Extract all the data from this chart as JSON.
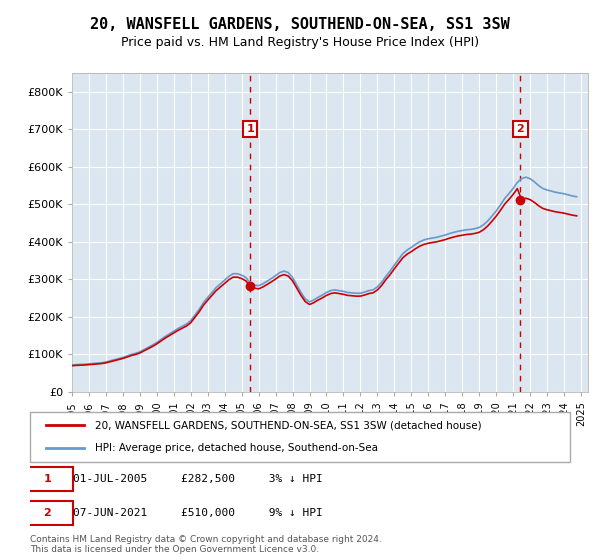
{
  "title": "20, WANSFELL GARDENS, SOUTHEND-ON-SEA, SS1 3SW",
  "subtitle": "Price paid vs. HM Land Registry's House Price Index (HPI)",
  "title_fontsize": 11,
  "subtitle_fontsize": 9,
  "background_color": "#dce6f0",
  "plot_bg_color": "#dce6f0",
  "ylabel_ticks": [
    "£0",
    "£100K",
    "£200K",
    "£300K",
    "£400K",
    "£500K",
    "£600K",
    "£700K",
    "£800K"
  ],
  "ytick_values": [
    0,
    100000,
    200000,
    300000,
    400000,
    500000,
    600000,
    700000,
    800000
  ],
  "ylim": [
    0,
    850000
  ],
  "xlim_start": "1995-01-01",
  "xlim_end": "2025-06-01",
  "legend_line1": "20, WANSFELL GARDENS, SOUTHEND-ON-SEA, SS1 3SW (detached house)",
  "legend_line2": "HPI: Average price, detached house, Southend-on-Sea",
  "annotation1_label": "1",
  "annotation1_date": "2005-07-01",
  "annotation1_price": 282500,
  "annotation1_text": "01-JUL-2005     £282,500     3% ↓ HPI",
  "annotation2_label": "2",
  "annotation2_date": "2021-06-07",
  "annotation2_price": 510000,
  "annotation2_text": "07-JUN-2021     £510,000     9% ↓ HPI",
  "footer": "Contains HM Land Registry data © Crown copyright and database right 2024.\nThis data is licensed under the Open Government Licence v3.0.",
  "line_color_red": "#cc0000",
  "line_color_blue": "#6699cc",
  "annotation_color": "#cc0000",
  "hpi_dates": [
    "1995-01-01",
    "1995-04-01",
    "1995-07-01",
    "1995-10-01",
    "1996-01-01",
    "1996-04-01",
    "1996-07-01",
    "1996-10-01",
    "1997-01-01",
    "1997-04-01",
    "1997-07-01",
    "1997-10-01",
    "1998-01-01",
    "1998-04-01",
    "1998-07-01",
    "1998-10-01",
    "1999-01-01",
    "1999-04-01",
    "1999-07-01",
    "1999-10-01",
    "2000-01-01",
    "2000-04-01",
    "2000-07-01",
    "2000-10-01",
    "2001-01-01",
    "2001-04-01",
    "2001-07-01",
    "2001-10-01",
    "2002-01-01",
    "2002-04-01",
    "2002-07-01",
    "2002-10-01",
    "2003-01-01",
    "2003-04-01",
    "2003-07-01",
    "2003-10-01",
    "2004-01-01",
    "2004-04-01",
    "2004-07-01",
    "2004-10-01",
    "2005-01-01",
    "2005-04-01",
    "2005-07-01",
    "2005-10-01",
    "2006-01-01",
    "2006-04-01",
    "2006-07-01",
    "2006-10-01",
    "2007-01-01",
    "2007-04-01",
    "2007-07-01",
    "2007-10-01",
    "2008-01-01",
    "2008-04-01",
    "2008-07-01",
    "2008-10-01",
    "2009-01-01",
    "2009-04-01",
    "2009-07-01",
    "2009-10-01",
    "2010-01-01",
    "2010-04-01",
    "2010-07-01",
    "2010-10-01",
    "2011-01-01",
    "2011-04-01",
    "2011-07-01",
    "2011-10-01",
    "2012-01-01",
    "2012-04-01",
    "2012-07-01",
    "2012-10-01",
    "2013-01-01",
    "2013-04-01",
    "2013-07-01",
    "2013-10-01",
    "2014-01-01",
    "2014-04-01",
    "2014-07-01",
    "2014-10-01",
    "2015-01-01",
    "2015-04-01",
    "2015-07-01",
    "2015-10-01",
    "2016-01-01",
    "2016-04-01",
    "2016-07-01",
    "2016-10-01",
    "2017-01-01",
    "2017-04-01",
    "2017-07-01",
    "2017-10-01",
    "2018-01-01",
    "2018-04-01",
    "2018-07-01",
    "2018-10-01",
    "2019-01-01",
    "2019-04-01",
    "2019-07-01",
    "2019-10-01",
    "2020-01-01",
    "2020-04-01",
    "2020-07-01",
    "2020-10-01",
    "2021-01-01",
    "2021-04-01",
    "2021-07-01",
    "2021-10-01",
    "2022-01-01",
    "2022-04-01",
    "2022-07-01",
    "2022-10-01",
    "2023-01-01",
    "2023-04-01",
    "2023-07-01",
    "2023-10-01",
    "2024-01-01",
    "2024-04-01",
    "2024-07-01",
    "2024-10-01"
  ],
  "hpi_values": [
    72000,
    73000,
    73500,
    74000,
    75000,
    76000,
    77000,
    78000,
    80000,
    83000,
    86000,
    89000,
    92000,
    96000,
    100000,
    103000,
    107000,
    113000,
    119000,
    125000,
    132000,
    140000,
    148000,
    155000,
    162000,
    169000,
    175000,
    181000,
    190000,
    205000,
    220000,
    238000,
    252000,
    265000,
    278000,
    288000,
    298000,
    308000,
    315000,
    315000,
    311000,
    305000,
    291000,
    285000,
    283000,
    288000,
    295000,
    302000,
    310000,
    318000,
    322000,
    318000,
    305000,
    285000,
    265000,
    248000,
    240000,
    245000,
    252000,
    258000,
    265000,
    270000,
    272000,
    270000,
    268000,
    265000,
    264000,
    263000,
    263000,
    266000,
    270000,
    272000,
    280000,
    292000,
    308000,
    322000,
    338000,
    353000,
    368000,
    378000,
    385000,
    393000,
    400000,
    405000,
    408000,
    410000,
    412000,
    415000,
    418000,
    422000,
    425000,
    428000,
    430000,
    432000,
    433000,
    435000,
    438000,
    445000,
    455000,
    468000,
    482000,
    498000,
    515000,
    528000,
    542000,
    558000,
    568000,
    572000,
    568000,
    560000,
    550000,
    542000,
    538000,
    535000,
    532000,
    530000,
    528000,
    525000,
    522000,
    520000
  ],
  "price_dates": [
    "2005-07-01",
    "2021-06-07"
  ],
  "price_values": [
    282500,
    510000
  ]
}
